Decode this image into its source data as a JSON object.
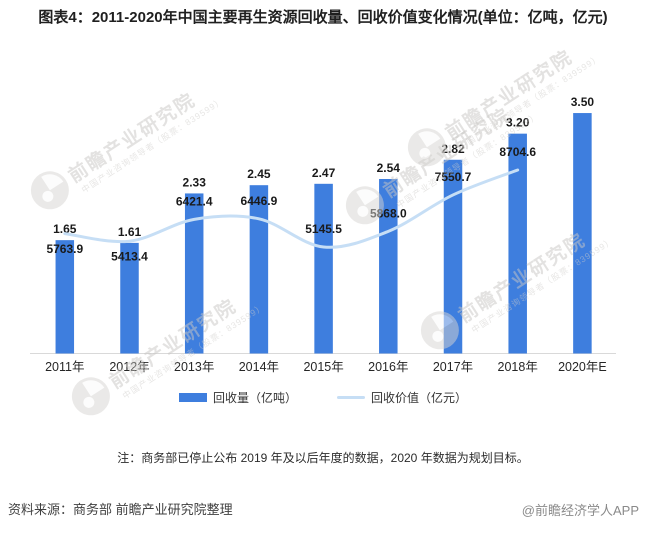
{
  "title": "图表4：2011-2020年中国主要再生资源回收量、回收价值变化情况(单位：亿吨，亿元)",
  "chart_data": {
    "type": "bar+line",
    "categories": [
      "2011年",
      "2012年",
      "2013年",
      "2014年",
      "2015年",
      "2016年",
      "2017年",
      "2018年",
      "2020年E"
    ],
    "series": [
      {
        "name": "回收量（亿吨）",
        "type": "bar",
        "color": "#3e7ede",
        "values": [
          1.65,
          1.61,
          2.33,
          2.45,
          2.47,
          2.54,
          2.82,
          3.2,
          3.5
        ]
      },
      {
        "name": "回收价值（亿元）",
        "type": "line",
        "color": "#c6def5",
        "values": [
          5763.9,
          5413.4,
          6421.4,
          6446.9,
          5145.5,
          5868.0,
          7550.7,
          8704.6,
          null
        ],
        "label_side": [
          "below",
          "below",
          "above",
          "above",
          "above",
          "above",
          "above",
          "above",
          null
        ]
      }
    ],
    "value_axis_visible": false,
    "gridlines": false,
    "legend_position": "bottom",
    "axis_line_color": "#d9d9d9",
    "label_color": "#1a1a1a"
  },
  "note": "注：商务部已停止公布 2019 年及以后年度的数据，2020 年数据为规划目标。",
  "footer": {
    "source": "资料来源：商务部 前瞻产业研究院整理",
    "credit": "@前瞻经济学人APP"
  },
  "watermark": {
    "main": "前瞻产业研究院",
    "sub": "中国产业咨询领导者（股票：839599）"
  }
}
